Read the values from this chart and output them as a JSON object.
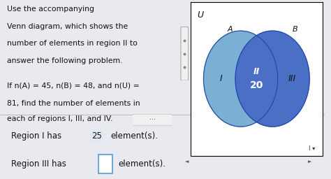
{
  "bg_color": "#e8eaf0",
  "panel_bg": "#ffffff",
  "text_left": [
    "Use the accompanying",
    "Venn diagram, which shows the",
    "number of elements in region II to",
    "answer the following problem.",
    "",
    "If n(A) = 45, n(B) = 48, and n(U) =",
    "81, find the number of elements in",
    "each of regions I, III, and IV."
  ],
  "venn_U_label": "U",
  "venn_A_label": "A",
  "venn_B_label": "B",
  "venn_region_I": "I",
  "venn_region_II": "II",
  "venn_region_III": "III",
  "venn_region_II_value": "20",
  "circle_A_color": "#7bafd4",
  "circle_B_color": "#4a6fc4",
  "intersection_color": "#3a5ab8",
  "circle_outline": "#2244aa",
  "divider_color": "#bbbbbb",
  "scrollbar_color": "#c8c8c8",
  "input_box_edge": "#5599cc",
  "highlight_25_bg": "#e0e8f0",
  "text_color": "#111111",
  "white": "#ffffff",
  "gray_dots": "#888888"
}
